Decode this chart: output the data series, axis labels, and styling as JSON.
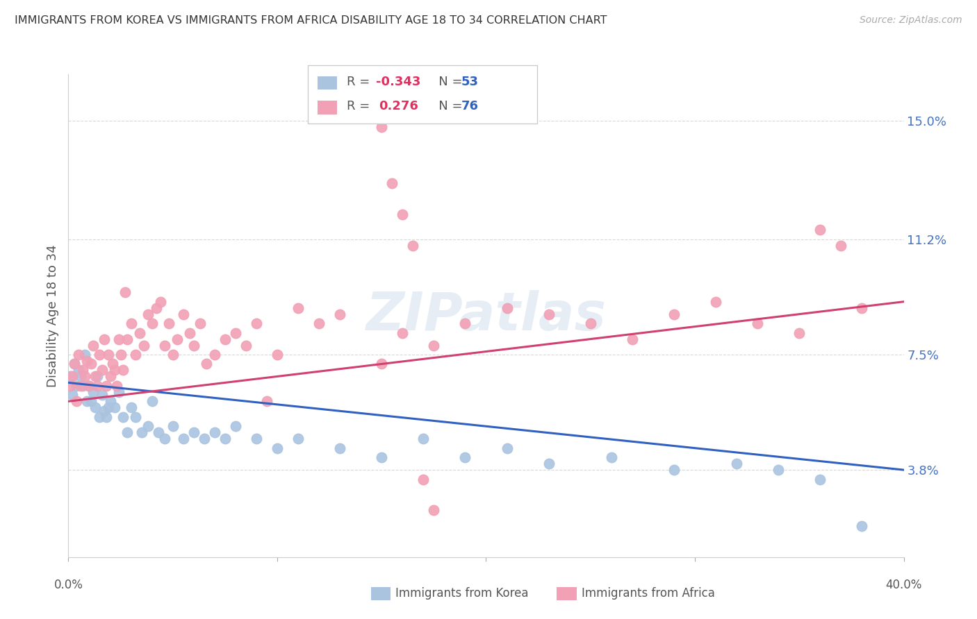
{
  "title": "IMMIGRANTS FROM KOREA VS IMMIGRANTS FROM AFRICA DISABILITY AGE 18 TO 34 CORRELATION CHART",
  "source": "Source: ZipAtlas.com",
  "ylabel": "Disability Age 18 to 34",
  "ytick_labels": [
    "15.0%",
    "11.2%",
    "7.5%",
    "3.8%"
  ],
  "ytick_values": [
    0.15,
    0.112,
    0.075,
    0.038
  ],
  "xmin": 0.0,
  "xmax": 0.4,
  "ymin": 0.01,
  "ymax": 0.165,
  "korea_color": "#aac4e0",
  "africa_color": "#f2a0b5",
  "korea_line_color": "#3060c0",
  "africa_line_color": "#d04070",
  "watermark": "ZIPatlas",
  "background_color": "#ffffff",
  "grid_color": "#d8d8d8",
  "korea_x": [
    0.001,
    0.002,
    0.003,
    0.004,
    0.005,
    0.006,
    0.007,
    0.008,
    0.009,
    0.01,
    0.011,
    0.012,
    0.013,
    0.014,
    0.015,
    0.016,
    0.017,
    0.018,
    0.019,
    0.02,
    0.022,
    0.024,
    0.026,
    0.028,
    0.03,
    0.032,
    0.035,
    0.038,
    0.04,
    0.043,
    0.046,
    0.05,
    0.055,
    0.06,
    0.065,
    0.07,
    0.075,
    0.08,
    0.09,
    0.1,
    0.11,
    0.13,
    0.15,
    0.17,
    0.19,
    0.21,
    0.23,
    0.26,
    0.29,
    0.32,
    0.34,
    0.36,
    0.38
  ],
  "korea_y": [
    0.068,
    0.062,
    0.072,
    0.065,
    0.07,
    0.068,
    0.065,
    0.075,
    0.06,
    0.065,
    0.06,
    0.063,
    0.058,
    0.068,
    0.055,
    0.062,
    0.057,
    0.055,
    0.058,
    0.06,
    0.058,
    0.063,
    0.055,
    0.05,
    0.058,
    0.055,
    0.05,
    0.052,
    0.06,
    0.05,
    0.048,
    0.052,
    0.048,
    0.05,
    0.048,
    0.05,
    0.048,
    0.052,
    0.048,
    0.045,
    0.048,
    0.045,
    0.042,
    0.048,
    0.042,
    0.045,
    0.04,
    0.042,
    0.038,
    0.04,
    0.038,
    0.035,
    0.02
  ],
  "africa_x": [
    0.001,
    0.002,
    0.003,
    0.004,
    0.005,
    0.006,
    0.007,
    0.008,
    0.009,
    0.01,
    0.011,
    0.012,
    0.013,
    0.014,
    0.015,
    0.016,
    0.017,
    0.018,
    0.019,
    0.02,
    0.021,
    0.022,
    0.023,
    0.024,
    0.025,
    0.026,
    0.027,
    0.028,
    0.03,
    0.032,
    0.034,
    0.036,
    0.038,
    0.04,
    0.042,
    0.044,
    0.046,
    0.048,
    0.05,
    0.052,
    0.055,
    0.058,
    0.06,
    0.063,
    0.066,
    0.07,
    0.075,
    0.08,
    0.085,
    0.09,
    0.095,
    0.1,
    0.11,
    0.12,
    0.13,
    0.15,
    0.16,
    0.175,
    0.19,
    0.21,
    0.23,
    0.25,
    0.27,
    0.29,
    0.31,
    0.33,
    0.35,
    0.36,
    0.37,
    0.38,
    0.15,
    0.155,
    0.16,
    0.165,
    0.17,
    0.175
  ],
  "africa_y": [
    0.065,
    0.068,
    0.072,
    0.06,
    0.075,
    0.065,
    0.07,
    0.068,
    0.073,
    0.065,
    0.072,
    0.078,
    0.068,
    0.065,
    0.075,
    0.07,
    0.08,
    0.065,
    0.075,
    0.068,
    0.072,
    0.07,
    0.065,
    0.08,
    0.075,
    0.07,
    0.095,
    0.08,
    0.085,
    0.075,
    0.082,
    0.078,
    0.088,
    0.085,
    0.09,
    0.092,
    0.078,
    0.085,
    0.075,
    0.08,
    0.088,
    0.082,
    0.078,
    0.085,
    0.072,
    0.075,
    0.08,
    0.082,
    0.078,
    0.085,
    0.06,
    0.075,
    0.09,
    0.085,
    0.088,
    0.072,
    0.082,
    0.078,
    0.085,
    0.09,
    0.088,
    0.085,
    0.08,
    0.088,
    0.092,
    0.085,
    0.082,
    0.115,
    0.11,
    0.09,
    0.148,
    0.13,
    0.12,
    0.11,
    0.035,
    0.025
  ],
  "korea_line_x0": 0.0,
  "korea_line_y0": 0.066,
  "korea_line_x1": 0.4,
  "korea_line_y1": 0.038,
  "africa_line_x0": 0.0,
  "africa_line_y0": 0.06,
  "africa_line_x1": 0.4,
  "africa_line_y1": 0.092
}
